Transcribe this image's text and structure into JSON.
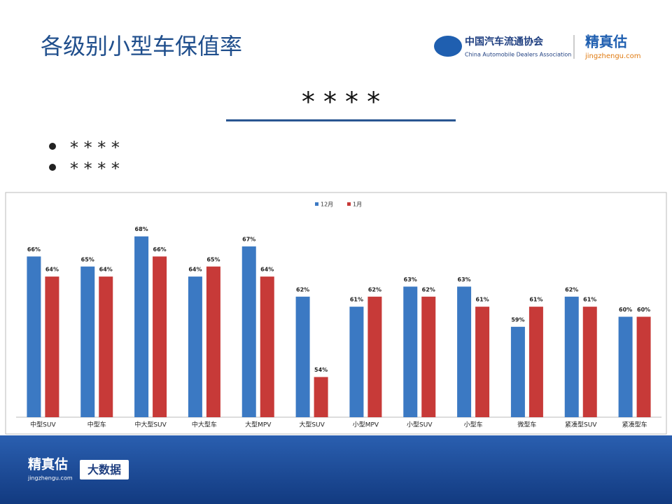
{
  "header": {
    "title": "各级别小型车保值率",
    "org_name": "中国汽车流通协会",
    "org_name_en": "China Automobile Dealers Association",
    "brand": "精真估",
    "brand_url": "jingzhengu.com"
  },
  "heading": "* * * *",
  "bullets": [
    "* * * *",
    "* * * *"
  ],
  "chart_data": {
    "type": "bar",
    "categories": [
      "中型SUV",
      "中型车",
      "中大型SUV",
      "中大型车",
      "大型MPV",
      "大型SUV",
      "小型MPV",
      "小型SUV",
      "小型车",
      "微型车",
      "紧凑型SUV",
      "紧凑型车"
    ],
    "series": [
      {
        "name": "12月",
        "color": "#3b79c3",
        "values": [
          66,
          65,
          68,
          64,
          67,
          62,
          61,
          63,
          63,
          59,
          62,
          60
        ],
        "value_labels": [
          "66%",
          "65%",
          "68%",
          "64%",
          "67%",
          "62%",
          "61%",
          "63%",
          "63%",
          "59%",
          "62%",
          "60%"
        ]
      },
      {
        "name": "1月",
        "color": "#c73a38",
        "values": [
          64,
          64,
          66,
          65,
          64,
          54,
          62,
          62,
          61,
          61,
          61,
          60
        ],
        "value_labels": [
          "64%",
          "64%",
          "66%",
          "65%",
          "64%",
          "54%",
          "62%",
          "62%",
          "61%",
          "61%",
          "61%",
          "60%"
        ]
      }
    ],
    "ylim": [
      50,
      70
    ],
    "legend": "top"
  },
  "footer": {
    "brand": "精真估",
    "brand_url": "jingzhengu.com",
    "tag": "大数据"
  }
}
